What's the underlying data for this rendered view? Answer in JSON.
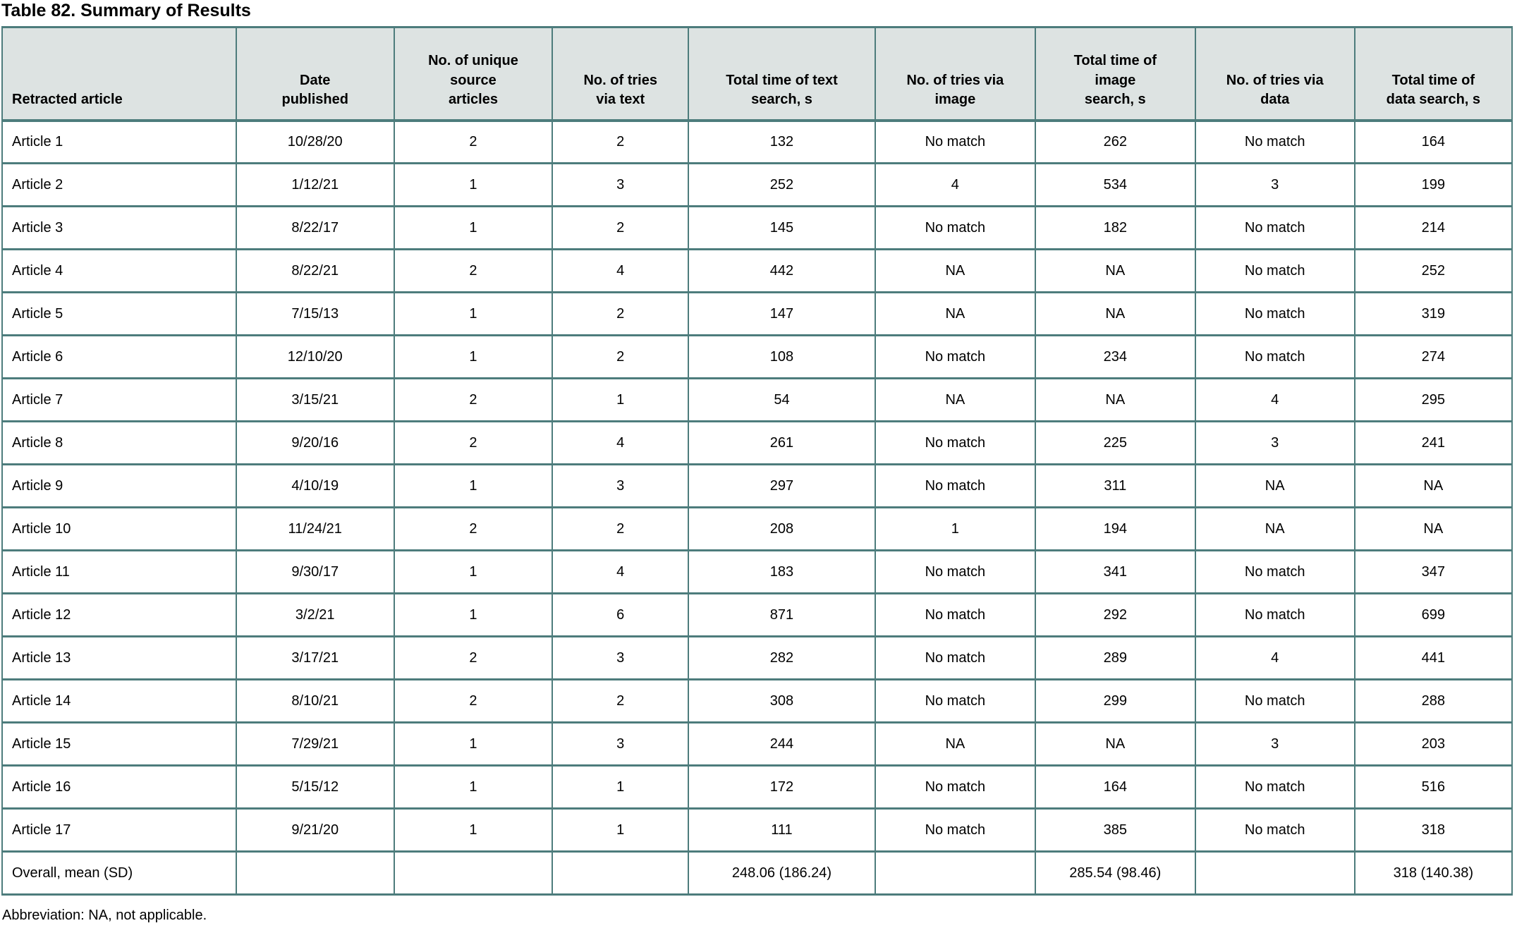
{
  "title": "Table 82. Summary of Results",
  "footnote": "Abbreviation: NA, not applicable.",
  "colors": {
    "border": "#4d7c7c",
    "header_bg": "#dde3e2",
    "text": "#000000",
    "row_bg": "#ffffff"
  },
  "table": {
    "columns": [
      {
        "label": "Retracted article",
        "align": "left"
      },
      {
        "label": "Date\npublished",
        "align": "center"
      },
      {
        "label": "No. of unique\nsource\narticles",
        "align": "center"
      },
      {
        "label": "No. of tries\nvia text",
        "align": "center"
      },
      {
        "label": "Total time of text\nsearch, s",
        "align": "center"
      },
      {
        "label": "No. of tries via\nimage",
        "align": "center"
      },
      {
        "label": "Total time of\nimage\nsearch, s",
        "align": "center"
      },
      {
        "label": "No. of tries via\ndata",
        "align": "center"
      },
      {
        "label": "Total time of\ndata search, s",
        "align": "center"
      }
    ],
    "rows": [
      [
        "Article 1",
        "10/28/20",
        "2",
        "2",
        "132",
        "No match",
        "262",
        "No match",
        "164"
      ],
      [
        "Article 2",
        "1/12/21",
        "1",
        "3",
        "252",
        "4",
        "534",
        "3",
        "199"
      ],
      [
        "Article 3",
        "8/22/17",
        "1",
        "2",
        "145",
        "No match",
        "182",
        "No match",
        "214"
      ],
      [
        "Article 4",
        "8/22/21",
        "2",
        "4",
        "442",
        "NA",
        "NA",
        "No match",
        "252"
      ],
      [
        "Article 5",
        "7/15/13",
        "1",
        "2",
        "147",
        "NA",
        "NA",
        "No match",
        "319"
      ],
      [
        "Article 6",
        "12/10/20",
        "1",
        "2",
        "108",
        "No match",
        "234",
        "No match",
        "274"
      ],
      [
        "Article 7",
        "3/15/21",
        "2",
        "1",
        "54",
        "NA",
        "NA",
        "4",
        "295"
      ],
      [
        "Article 8",
        "9/20/16",
        "2",
        "4",
        "261",
        "No match",
        "225",
        "3",
        "241"
      ],
      [
        "Article 9",
        "4/10/19",
        "1",
        "3",
        "297",
        "No match",
        "311",
        "NA",
        "NA"
      ],
      [
        "Article 10",
        "11/24/21",
        "2",
        "2",
        "208",
        "1",
        "194",
        "NA",
        "NA"
      ],
      [
        "Article 11",
        "9/30/17",
        "1",
        "4",
        "183",
        "No match",
        "341",
        "No match",
        "347"
      ],
      [
        "Article 12",
        "3/2/21",
        "1",
        "6",
        "871",
        "No match",
        "292",
        "No match",
        "699"
      ],
      [
        "Article 13",
        "3/17/21",
        "2",
        "3",
        "282",
        "No match",
        "289",
        "4",
        "441"
      ],
      [
        "Article 14",
        "8/10/21",
        "2",
        "2",
        "308",
        "No match",
        "299",
        "No match",
        "288"
      ],
      [
        "Article 15",
        "7/29/21",
        "1",
        "3",
        "244",
        "NA",
        "NA",
        "3",
        "203"
      ],
      [
        "Article 16",
        "5/15/12",
        "1",
        "1",
        "172",
        "No match",
        "164",
        "No match",
        "516"
      ],
      [
        "Article 17",
        "9/21/20",
        "1",
        "1",
        "111",
        "No match",
        "385",
        "No match",
        "318"
      ],
      [
        "Overall, mean (SD)",
        "",
        "",
        "",
        "248.06 (186.24)",
        "",
        "285.54 (98.46)",
        "",
        "318 (140.38)"
      ]
    ]
  }
}
